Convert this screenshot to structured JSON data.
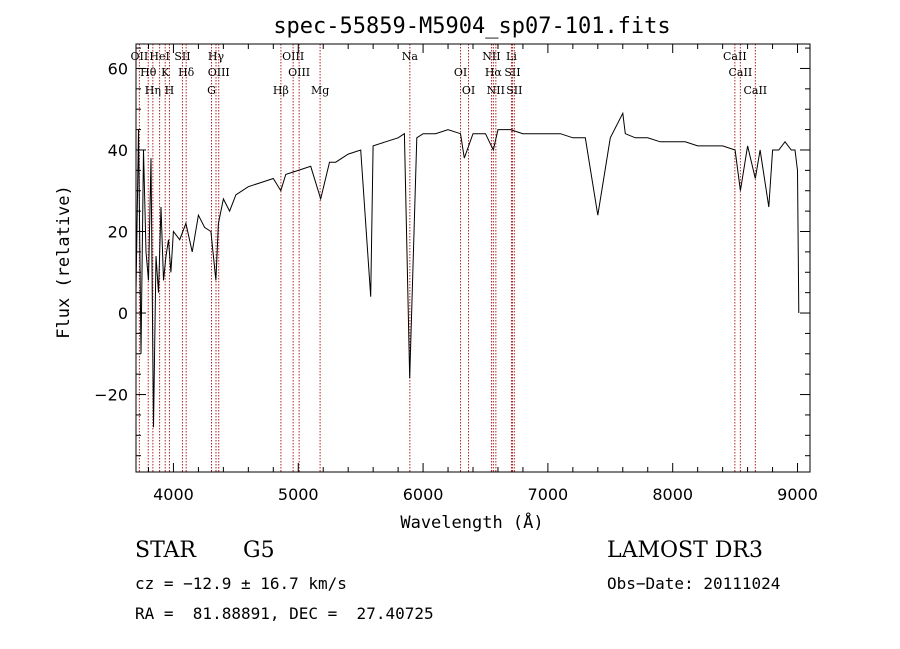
{
  "chart_data": {
    "type": "line",
    "title": "spec-55859-M5904_sp07-101.fits",
    "xlabel": "Wavelength (Å)",
    "ylabel": "Flux (relative)",
    "xlim": [
      3700,
      9100
    ],
    "ylim": [
      -39,
      66
    ],
    "xticks": [
      4000,
      5000,
      6000,
      7000,
      8000,
      9000
    ],
    "yticks": [
      -20,
      0,
      20,
      40,
      60
    ],
    "xtick_labels": [
      "4000",
      "5000",
      "6000",
      "7000",
      "8000",
      "9000"
    ],
    "ytick_labels": [
      "−20",
      "0",
      "20",
      "40",
      "60"
    ],
    "grid": false,
    "series": [
      {
        "name": "spectrum",
        "x": [
          3700,
          3720,
          3740,
          3760,
          3780,
          3800,
          3820,
          3840,
          3860,
          3880,
          3900,
          3920,
          3940,
          3960,
          3980,
          4000,
          4050,
          4100,
          4150,
          4200,
          4250,
          4300,
          4340,
          4360,
          4400,
          4450,
          4500,
          4600,
          4700,
          4800,
          4860,
          4900,
          5000,
          5100,
          5180,
          5250,
          5300,
          5400,
          5500,
          5580,
          5600,
          5700,
          5800,
          5850,
          5893,
          5950,
          6000,
          6100,
          6200,
          6300,
          6330,
          6400,
          6500,
          6563,
          6600,
          6700,
          6800,
          6900,
          7000,
          7100,
          7200,
          7300,
          7400,
          7500,
          7600,
          7620,
          7700,
          7800,
          7900,
          8000,
          8100,
          8200,
          8300,
          8400,
          8500,
          8542,
          8600,
          8662,
          8700,
          8770,
          8800,
          8850,
          8900,
          8950,
          8980,
          9000,
          9010
        ],
        "y": [
          5,
          45,
          -10,
          40,
          15,
          8,
          38,
          -28,
          14,
          5,
          26,
          8,
          14,
          18,
          10,
          20,
          18,
          22,
          15,
          24,
          21,
          20,
          8,
          22,
          28,
          25,
          29,
          31,
          32,
          33,
          30,
          34,
          35,
          36,
          28,
          37,
          37,
          39,
          40,
          4,
          41,
          42,
          43,
          44,
          -16,
          43,
          44,
          44,
          45,
          44,
          38,
          44,
          44,
          40,
          45,
          45,
          44,
          44,
          44,
          44,
          43,
          43,
          24,
          43,
          49,
          44,
          43,
          43,
          42,
          42,
          42,
          41,
          41,
          41,
          40,
          30,
          41,
          33,
          40,
          26,
          40,
          40,
          42,
          40,
          40,
          35,
          0
        ]
      }
    ],
    "lines": [
      {
        "label": "OII",
        "x": 3727
      },
      {
        "label": "Hθ",
        "x": 3798
      },
      {
        "label": "Hη",
        "x": 3835
      },
      {
        "label": "HeI",
        "x": 3889
      },
      {
        "label": "K",
        "x": 3934
      },
      {
        "label": "H",
        "x": 3968
      },
      {
        "label": "SII",
        "x": 4072
      },
      {
        "label": "Hδ",
        "x": 4102
      },
      {
        "label": "G",
        "x": 4305
      },
      {
        "label": "Hγ",
        "x": 4341
      },
      {
        "label": "OIII",
        "x": 4363
      },
      {
        "label": "Hβ",
        "x": 4861
      },
      {
        "label": "OIII",
        "x": 4959
      },
      {
        "label": "OIII",
        "x": 5007
      },
      {
        "label": "Mg",
        "x": 5175
      },
      {
        "label": "Na",
        "x": 5894
      },
      {
        "label": "OI",
        "x": 6300
      },
      {
        "label": "OI",
        "x": 6364
      },
      {
        "label": "NII",
        "x": 6548
      },
      {
        "label": "Hα",
        "x": 6563
      },
      {
        "label": "NII",
        "x": 6583
      },
      {
        "label": "Li",
        "x": 6708
      },
      {
        "label": "SII",
        "x": 6716
      },
      {
        "label": "SII",
        "x": 6731
      },
      {
        "label": "CaII",
        "x": 8498
      },
      {
        "label": "CaII",
        "x": 8542
      },
      {
        "label": "CaII",
        "x": 8662
      }
    ],
    "annotations": {
      "object_class": "STAR",
      "subclass": "G5",
      "survey": "LAMOST DR3",
      "cz": "cz = −12.9 ± 16.7 km/s",
      "obs_date": "Obs−Date: 20111024",
      "radec": "RA =  81.88891, DEC =  27.40725"
    }
  }
}
